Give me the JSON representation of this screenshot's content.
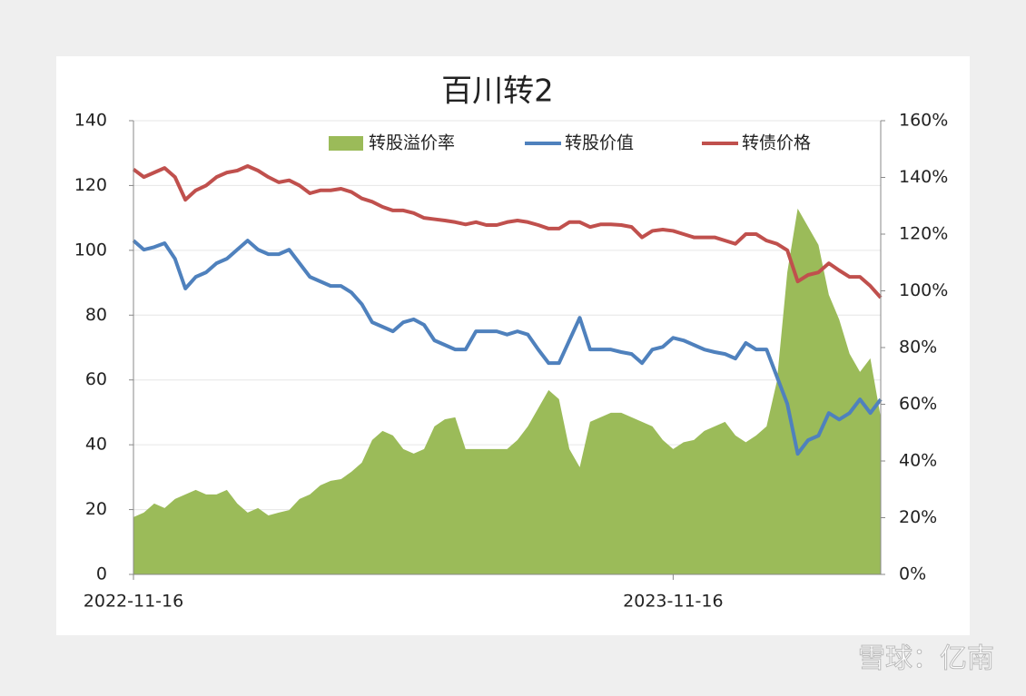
{
  "chart_data": {
    "type": "line",
    "title": "百川转2",
    "watermark": "雪球：亿南",
    "categories": [
      "2022-11-16",
      null,
      null,
      null,
      null,
      null,
      null,
      null,
      null,
      null,
      null,
      null,
      null,
      null,
      null,
      null,
      null,
      null,
      null,
      null,
      null,
      null,
      null,
      null,
      null,
      null,
      null,
      null,
      null,
      null,
      null,
      null,
      null,
      null,
      null,
      null,
      null,
      null,
      null,
      null,
      null,
      null,
      null,
      null,
      null,
      null,
      null,
      null,
      null,
      null,
      null,
      null,
      "2023-11-16",
      null,
      null,
      null,
      null,
      null,
      null,
      null,
      null,
      null,
      null,
      null,
      null,
      null,
      null,
      null,
      null,
      null,
      null,
      null,
      null
    ],
    "series": [
      {
        "name": "转股溢价率",
        "type": "area",
        "axis": "y2",
        "color": "#9bbb59",
        "values": [
          20.2,
          21.8,
          25,
          23.4,
          26.6,
          28.2,
          29.8,
          28.2,
          28.2,
          29.8,
          25,
          21.8,
          23.4,
          20.8,
          21.8,
          22.7,
          26.6,
          28.2,
          31.4,
          33,
          33.6,
          36.2,
          39.4,
          47.4,
          50.6,
          49,
          44.2,
          42.6,
          44.2,
          52.2,
          54.7,
          55.4,
          44.2,
          44.2,
          44.2,
          44.2,
          44.2,
          47.4,
          52.2,
          58.6,
          65,
          61.8,
          44.2,
          37.8,
          53.8,
          55.4,
          57,
          57,
          55.4,
          53.8,
          52.2,
          47.4,
          44.2,
          46.6,
          47.4,
          50.6,
          52.2,
          53.8,
          49,
          46.6,
          49,
          52.2,
          68.2,
          106.6,
          129,
          122.6,
          116.2,
          98.6,
          89.9,
          77.8,
          71.4,
          76.2,
          55.4
        ]
      },
      {
        "name": "转股价值",
        "type": "line",
        "color": "#4f81bd",
        "values": [
          103,
          100.2,
          101,
          102.2,
          97.4,
          88.2,
          91.8,
          93.2,
          96,
          97.4,
          100.2,
          103,
          100.2,
          98.8,
          98.8,
          100.2,
          96,
          91.8,
          90.4,
          89,
          89,
          87,
          83.4,
          77.8,
          76.4,
          75,
          77.8,
          78.7,
          77,
          72.2,
          70.8,
          69.4,
          69.4,
          75,
          75,
          75,
          74,
          75,
          74,
          69.4,
          65.2,
          65.2,
          72.2,
          79.2,
          69.4,
          69.4,
          69.4,
          68.6,
          68,
          65.2,
          69.4,
          70.2,
          73,
          72.2,
          70.8,
          69.4,
          68.6,
          68,
          66.6,
          71.4,
          69.4,
          69.4,
          61,
          52.6,
          37.2,
          41.4,
          42.8,
          49.8,
          47.8,
          49.8,
          54,
          49.8,
          54
        ]
      },
      {
        "name": "转债价格",
        "type": "line",
        "color": "#c0504d",
        "values": [
          125,
          122.6,
          124,
          125.4,
          122.6,
          115.6,
          118.5,
          120,
          122.6,
          124,
          124.6,
          126,
          124.6,
          122.6,
          121,
          121.6,
          120,
          117.6,
          118.5,
          118.5,
          119,
          118,
          116,
          115,
          113.4,
          112.3,
          112.3,
          111.5,
          110,
          109.6,
          109.2,
          108.7,
          108,
          108.7,
          107.8,
          107.8,
          108.7,
          109.2,
          108.7,
          107.8,
          106.7,
          106.7,
          108.7,
          108.7,
          107.2,
          108,
          108,
          107.8,
          107.2,
          104,
          106,
          106.4,
          106,
          105,
          104,
          104,
          104,
          103,
          102,
          105,
          105,
          103,
          102,
          100,
          90.4,
          92.4,
          93.2,
          96,
          93.8,
          91.8,
          91.8,
          89,
          85.4
        ]
      }
    ],
    "ylim": [
      0,
      140
    ],
    "yticks": [
      0,
      20,
      40,
      60,
      80,
      100,
      120,
      140
    ],
    "y2lim": [
      0,
      160
    ],
    "y2ticks": [
      {
        "value": 0,
        "label": "0%"
      },
      {
        "value": 20,
        "label": "20%"
      },
      {
        "value": 40,
        "label": "40%"
      },
      {
        "value": 60,
        "label": "60%"
      },
      {
        "value": 80,
        "label": "80%"
      },
      {
        "value": 100,
        "label": "100%"
      },
      {
        "value": 120,
        "label": "120%"
      },
      {
        "value": 140,
        "label": "140%"
      },
      {
        "value": 160,
        "label": "160%"
      }
    ],
    "grid": true,
    "legend": "top"
  }
}
